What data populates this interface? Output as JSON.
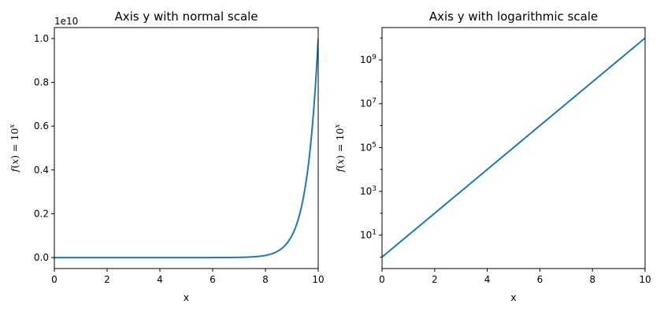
{
  "chart_data": [
    {
      "type": "line",
      "title": "Axis y with normal scale",
      "xlabel": "x",
      "ylabel": {
        "f": "f",
        "var": "x",
        "base": "10",
        "exp": "x"
      },
      "xlim": [
        0,
        10
      ],
      "ylim": [
        -500000000,
        10500000000
      ],
      "yscale": "linear",
      "offset_text": "1e10",
      "xticks": [
        0,
        2,
        4,
        6,
        8,
        10
      ],
      "xtick_labels": [
        "0",
        "2",
        "4",
        "6",
        "8",
        "10"
      ],
      "yticks": [
        0,
        2000000000,
        4000000000,
        6000000000,
        8000000000,
        10000000000
      ],
      "ytick_labels": [
        "0.0",
        "0.2",
        "0.4",
        "0.6",
        "0.8",
        "1.0"
      ],
      "function": "10^x",
      "x_samples": [
        0,
        1,
        2,
        3,
        4,
        5,
        6,
        7,
        8,
        9,
        10
      ],
      "y_samples": [
        1,
        10,
        100,
        1000,
        10000,
        100000,
        1000000,
        10000000,
        100000000,
        1000000000,
        10000000000
      ],
      "grid": false,
      "color": "#1f77b4"
    },
    {
      "type": "line",
      "title": "Axis y with logarithmic scale",
      "xlabel": "x",
      "ylabel": {
        "f": "f",
        "var": "x",
        "base": "10",
        "exp": "x"
      },
      "xlim": [
        0,
        10
      ],
      "ylim": [
        0.3,
        30000000000
      ],
      "yscale": "log",
      "xticks": [
        0,
        2,
        4,
        6,
        8,
        10
      ],
      "xtick_labels": [
        "0",
        "2",
        "4",
        "6",
        "8",
        "10"
      ],
      "yticks": [
        10,
        1000,
        100000,
        10000000,
        1000000000
      ],
      "ytick_labels": [
        {
          "base": "10",
          "exp": "1"
        },
        {
          "base": "10",
          "exp": "3"
        },
        {
          "base": "10",
          "exp": "5"
        },
        {
          "base": "10",
          "exp": "7"
        },
        {
          "base": "10",
          "exp": "9"
        }
      ],
      "function": "10^x",
      "x_samples": [
        0,
        1,
        2,
        3,
        4,
        5,
        6,
        7,
        8,
        9,
        10
      ],
      "y_samples": [
        1,
        10,
        100,
        1000,
        10000,
        100000,
        1000000,
        10000000,
        100000000,
        1000000000,
        10000000000
      ],
      "grid": false,
      "color": "#1f77b4"
    }
  ]
}
